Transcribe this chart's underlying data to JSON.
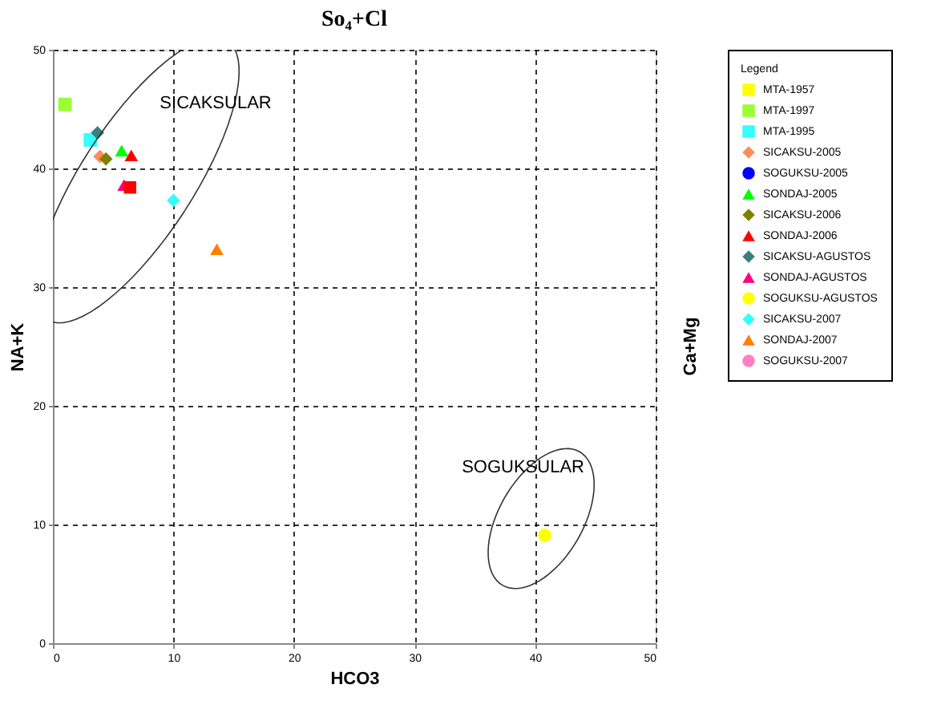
{
  "chart_data": {
    "type": "scatter",
    "title": "So₄+Cl",
    "xlabel": "HCO3",
    "ylabel": "NA+K",
    "y2label": "Ca+Mg",
    "legend_title": "Legend",
    "legend": "right",
    "xlim": [
      0,
      50
    ],
    "ylim": [
      0,
      50
    ],
    "xticks": [
      0,
      10,
      20,
      30,
      40,
      50
    ],
    "yticks": [
      0,
      10,
      20,
      30,
      40,
      50
    ],
    "grid": true,
    "annotations": [
      "SICAKSULAR",
      "SOGUKSULAR"
    ],
    "series": [
      {
        "name": "MTA-1957",
        "color": "#ffff00",
        "marker": "square",
        "x": [
          null
        ],
        "values": [
          null
        ]
      },
      {
        "name": "MTA-1997",
        "color": "#99ff33",
        "marker": "square",
        "x": [
          1
        ],
        "values": [
          45.4
        ]
      },
      {
        "name": "MTA-1995",
        "color": "#33ffff",
        "marker": "square",
        "x": [
          3.1
        ],
        "values": [
          42.4
        ]
      },
      {
        "name": "SICAKSU-2005",
        "color": "#ff8c5a",
        "marker": "diamond",
        "x": [
          3.9
        ],
        "values": [
          41
        ]
      },
      {
        "name": "SOGUKSU-2005",
        "color": "#0000ff",
        "marker": "circle",
        "x": [
          null
        ],
        "values": [
          null
        ]
      },
      {
        "name": "SONDAJ-2005",
        "color": "#00ff00",
        "marker": "triangle",
        "x": [
          5.7
        ],
        "values": [
          41.5
        ]
      },
      {
        "name": "SICAKSU-2006",
        "color": "#808000",
        "marker": "diamond",
        "x": [
          4.4
        ],
        "values": [
          40.8
        ]
      },
      {
        "name": "SONDAJ-2006",
        "color": "#ff0000",
        "marker": "triangle",
        "x": [
          6.5
        ],
        "values": [
          41.1
        ]
      },
      {
        "name": "SICAKSU-AGUSTOS",
        "color": "#3a7f7f",
        "marker": "diamond",
        "x": [
          3.7
        ],
        "values": [
          43
        ]
      },
      {
        "name": "SONDAJ-AGUSTOS",
        "color": "#ff0080",
        "marker": "triangle",
        "x": [
          5.9
        ],
        "values": [
          38.6
        ]
      },
      {
        "name": "SOGUKSU-AGUSTOS",
        "color": "#ffff00",
        "marker": "circle",
        "x": [
          40.8
        ],
        "values": [
          9.1
        ]
      },
      {
        "name": "SICAKSU-2007",
        "color": "#33ffff",
        "marker": "diamond",
        "x": [
          10
        ],
        "values": [
          37.3
        ]
      },
      {
        "name": "SONDAJ-2007",
        "color": "#ff8000",
        "marker": "triangle",
        "x": [
          13.6
        ],
        "values": [
          33.2
        ]
      },
      {
        "name": "SOGUKSU-2007",
        "color": "#ff80c0",
        "marker": "circle",
        "x": [
          null
        ],
        "values": [
          null
        ]
      },
      {
        "color": "#ff0000",
        "marker": "square",
        "x": [
          6.4
        ],
        "values": [
          38.4
        ]
      }
    ]
  }
}
